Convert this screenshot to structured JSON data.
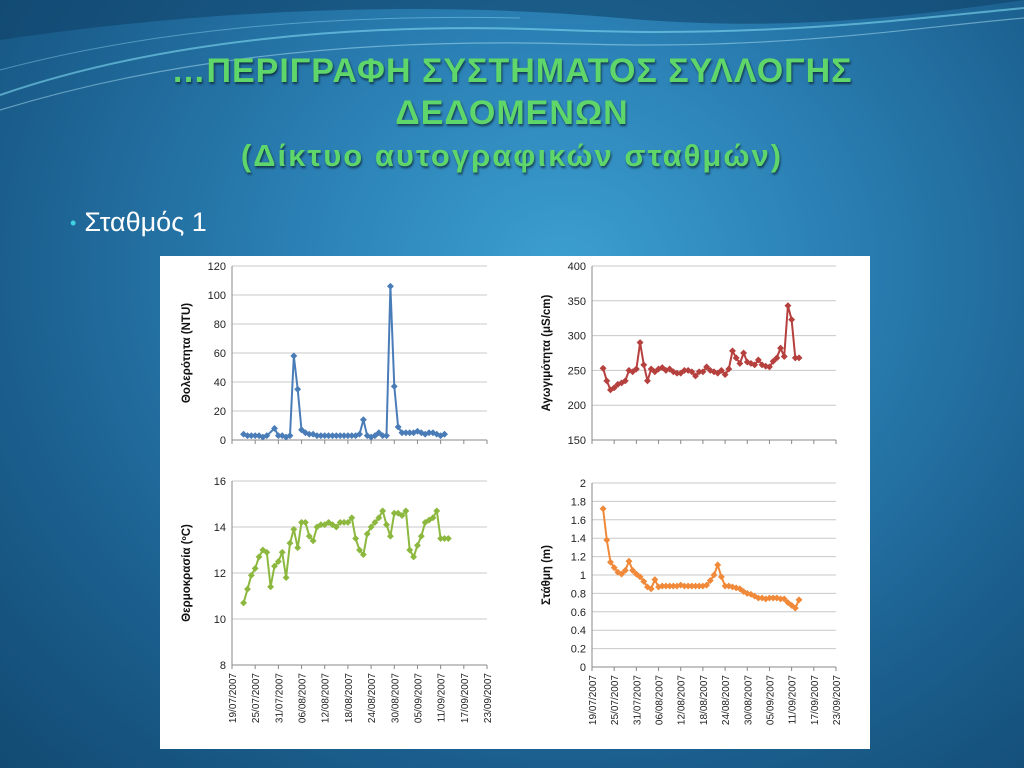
{
  "slide": {
    "title": "…ΠΕΡΙΓΡΑΦΗ ΣΥΣΤΗΜΑΤΟΣ ΣΥΛΛΟΓΗΣ",
    "title_line2": "ΔΕΔΟΜΕΝΩΝ",
    "subtitle": "(Δίκτυο αυτογραφικών σταθμών)",
    "bullet": "Σταθμός 1"
  },
  "colors": {
    "title": "#5fd66a",
    "bullet_dot": "#3fd3e0"
  },
  "date_ticks": [
    "19/07/2007",
    "25/07/2007",
    "31/07/2007",
    "06/08/2007",
    "12/08/2007",
    "18/08/2007",
    "24/08/2007",
    "30/08/2007",
    "05/09/2007",
    "11/09/2007",
    "17/09/2007",
    "23/09/2007"
  ],
  "chart_data": [
    {
      "type": "line",
      "ylabel": "Θολερότητα (NTU)",
      "ylim": [
        0,
        120
      ],
      "yticks": [
        "0",
        "20",
        "40",
        "60",
        "80",
        "100",
        "120"
      ],
      "color": "#4a7db8",
      "xlim": [
        "2007-07-19",
        "2007-09-23"
      ],
      "x": [
        "2007-07-22",
        "2007-07-23",
        "2007-07-24",
        "2007-07-25",
        "2007-07-26",
        "2007-07-27",
        "2007-07-28",
        "2007-07-30",
        "2007-07-31",
        "2007-08-01",
        "2007-08-02",
        "2007-08-03",
        "2007-08-04",
        "2007-08-05",
        "2007-08-06",
        "2007-08-07",
        "2007-08-08",
        "2007-08-09",
        "2007-08-10",
        "2007-08-11",
        "2007-08-12",
        "2007-08-13",
        "2007-08-14",
        "2007-08-15",
        "2007-08-16",
        "2007-08-17",
        "2007-08-18",
        "2007-08-19",
        "2007-08-20",
        "2007-08-21",
        "2007-08-22",
        "2007-08-23",
        "2007-08-24",
        "2007-08-25",
        "2007-08-26",
        "2007-08-27",
        "2007-08-28",
        "2007-08-29",
        "2007-08-30",
        "2007-08-31",
        "2007-09-01",
        "2007-09-02",
        "2007-09-03",
        "2007-09-04",
        "2007-09-05",
        "2007-09-06",
        "2007-09-07",
        "2007-09-08",
        "2007-09-09",
        "2007-09-10",
        "2007-09-11",
        "2007-09-12"
      ],
      "y": [
        4,
        3,
        3,
        3,
        3,
        2,
        3,
        8,
        3,
        3,
        2,
        3,
        58,
        35,
        7,
        5,
        4,
        4,
        3,
        3,
        3,
        3,
        3,
        3,
        3,
        3,
        3,
        3,
        3,
        4,
        14,
        3,
        2,
        3,
        5,
        3,
        3,
        106,
        37,
        9,
        5,
        5,
        5,
        5,
        6,
        5,
        4,
        5,
        5,
        4,
        3,
        4
      ]
    },
    {
      "type": "line",
      "ylabel": "Αγωγιμότητα (μS/cm)",
      "ylim": [
        150,
        400
      ],
      "yticks": [
        "150",
        "200",
        "250",
        "300",
        "350",
        "400"
      ],
      "color": "#b5403e",
      "xlim": [
        "2007-07-19",
        "2007-09-23"
      ],
      "x": [
        "2007-07-22",
        "2007-07-23",
        "2007-07-24",
        "2007-07-25",
        "2007-07-26",
        "2007-07-27",
        "2007-07-28",
        "2007-07-29",
        "2007-07-30",
        "2007-07-31",
        "2007-08-01",
        "2007-08-02",
        "2007-08-03",
        "2007-08-04",
        "2007-08-05",
        "2007-08-06",
        "2007-08-07",
        "2007-08-08",
        "2007-08-09",
        "2007-08-10",
        "2007-08-11",
        "2007-08-12",
        "2007-08-13",
        "2007-08-14",
        "2007-08-15",
        "2007-08-16",
        "2007-08-17",
        "2007-08-18",
        "2007-08-19",
        "2007-08-20",
        "2007-08-21",
        "2007-08-22",
        "2007-08-23",
        "2007-08-24",
        "2007-08-25",
        "2007-08-26",
        "2007-08-27",
        "2007-08-28",
        "2007-08-29",
        "2007-08-30",
        "2007-08-31",
        "2007-09-01",
        "2007-09-02",
        "2007-09-03",
        "2007-09-04",
        "2007-09-05",
        "2007-09-06",
        "2007-09-07",
        "2007-09-08",
        "2007-09-09",
        "2007-09-10",
        "2007-09-11",
        "2007-09-12",
        "2007-09-13"
      ],
      "y": [
        253,
        235,
        222,
        225,
        230,
        232,
        235,
        250,
        248,
        252,
        290,
        258,
        235,
        252,
        248,
        252,
        254,
        250,
        252,
        248,
        246,
        246,
        250,
        250,
        248,
        242,
        248,
        248,
        255,
        250,
        248,
        246,
        250,
        244,
        252,
        278,
        268,
        260,
        275,
        262,
        260,
        258,
        265,
        258,
        256,
        255,
        263,
        268,
        282,
        270,
        343,
        323,
        268,
        268
      ]
    },
    {
      "type": "line",
      "ylabel": "Θερμοκρασία (ºC)",
      "ylim": [
        8,
        16
      ],
      "yticks": [
        "8",
        "10",
        "12",
        "14",
        "16"
      ],
      "color": "#8cb83f",
      "xlim": [
        "2007-07-19",
        "2007-09-23"
      ],
      "x": [
        "2007-07-22",
        "2007-07-23",
        "2007-07-24",
        "2007-07-25",
        "2007-07-26",
        "2007-07-27",
        "2007-07-28",
        "2007-07-29",
        "2007-07-30",
        "2007-07-31",
        "2007-08-01",
        "2007-08-02",
        "2007-08-03",
        "2007-08-04",
        "2007-08-05",
        "2007-08-06",
        "2007-08-07",
        "2007-08-08",
        "2007-08-09",
        "2007-08-10",
        "2007-08-11",
        "2007-08-12",
        "2007-08-13",
        "2007-08-14",
        "2007-08-15",
        "2007-08-16",
        "2007-08-17",
        "2007-08-18",
        "2007-08-19",
        "2007-08-20",
        "2007-08-21",
        "2007-08-22",
        "2007-08-23",
        "2007-08-24",
        "2007-08-25",
        "2007-08-26",
        "2007-08-27",
        "2007-08-28",
        "2007-08-29",
        "2007-08-30",
        "2007-08-31",
        "2007-09-01",
        "2007-09-02",
        "2007-09-03",
        "2007-09-04",
        "2007-09-05",
        "2007-09-06",
        "2007-09-07",
        "2007-09-08",
        "2007-09-09",
        "2007-09-10",
        "2007-09-11",
        "2007-09-12",
        "2007-09-13"
      ],
      "y": [
        10.7,
        11.3,
        11.9,
        12.2,
        12.7,
        13.0,
        12.9,
        11.4,
        12.3,
        12.5,
        12.9,
        11.8,
        13.3,
        13.9,
        13.1,
        14.2,
        14.2,
        13.6,
        13.4,
        14.0,
        14.1,
        14.1,
        14.2,
        14.1,
        14.0,
        14.2,
        14.2,
        14.2,
        14.4,
        13.5,
        13.0,
        12.8,
        13.7,
        14.0,
        14.2,
        14.4,
        14.7,
        14.1,
        13.6,
        14.6,
        14.6,
        14.5,
        14.7,
        13.0,
        12.7,
        13.2,
        13.6,
        14.2,
        14.3,
        14.4,
        14.7,
        13.5,
        13.5,
        13.5
      ]
    },
    {
      "type": "line",
      "ylabel": "Στάθμη (m)",
      "ylim": [
        0,
        2
      ],
      "yticks": [
        "0",
        "0.2",
        "0.4",
        "0.6",
        "0.8",
        "1",
        "1.2",
        "1.4",
        "1.6",
        "1.8",
        "2"
      ],
      "color": "#f08a3a",
      "xlim": [
        "2007-07-19",
        "2007-09-23"
      ],
      "x": [
        "2007-07-22",
        "2007-07-23",
        "2007-07-24",
        "2007-07-25",
        "2007-07-26",
        "2007-07-27",
        "2007-07-28",
        "2007-07-29",
        "2007-07-30",
        "2007-07-31",
        "2007-08-01",
        "2007-08-02",
        "2007-08-03",
        "2007-08-04",
        "2007-08-05",
        "2007-08-06",
        "2007-08-07",
        "2007-08-08",
        "2007-08-09",
        "2007-08-10",
        "2007-08-11",
        "2007-08-12",
        "2007-08-13",
        "2007-08-14",
        "2007-08-15",
        "2007-08-16",
        "2007-08-17",
        "2007-08-18",
        "2007-08-19",
        "2007-08-20",
        "2007-08-21",
        "2007-08-22",
        "2007-08-23",
        "2007-08-24",
        "2007-08-25",
        "2007-08-26",
        "2007-08-27",
        "2007-08-28",
        "2007-08-29",
        "2007-08-30",
        "2007-08-31",
        "2007-09-01",
        "2007-09-02",
        "2007-09-03",
        "2007-09-04",
        "2007-09-05",
        "2007-09-06",
        "2007-09-07",
        "2007-09-08",
        "2007-09-09",
        "2007-09-10",
        "2007-09-11",
        "2007-09-12",
        "2007-09-13"
      ],
      "y": [
        1.72,
        1.38,
        1.14,
        1.08,
        1.03,
        1.01,
        1.05,
        1.15,
        1.05,
        1.01,
        0.98,
        0.93,
        0.87,
        0.85,
        0.95,
        0.87,
        0.88,
        0.88,
        0.88,
        0.88,
        0.88,
        0.89,
        0.88,
        0.88,
        0.88,
        0.88,
        0.88,
        0.88,
        0.89,
        0.94,
        1.0,
        1.11,
        0.98,
        0.88,
        0.88,
        0.87,
        0.86,
        0.85,
        0.82,
        0.8,
        0.79,
        0.77,
        0.75,
        0.75,
        0.74,
        0.75,
        0.75,
        0.75,
        0.74,
        0.74,
        0.7,
        0.67,
        0.64,
        0.73
      ]
    }
  ]
}
